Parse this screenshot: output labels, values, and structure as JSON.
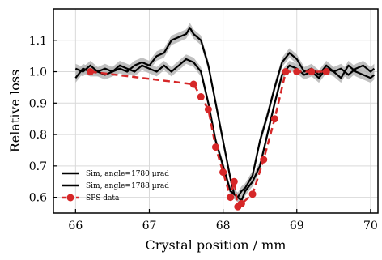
{
  "chart_data": {
    "type": "line",
    "title": "",
    "xlabel": "Crystal position / mm",
    "ylabel": "Relative loss",
    "xlim": [
      65.7,
      70.1
    ],
    "ylim": [
      0.55,
      1.2
    ],
    "xticks": [
      66,
      67,
      68,
      69,
      70
    ],
    "yticks": [
      0.6,
      0.7,
      0.8,
      0.9,
      1.0,
      1.1
    ],
    "xtick_labels": [
      "66",
      "67",
      "68",
      "69",
      "70"
    ],
    "ytick_labels": [
      "0.6",
      "0.7",
      "0.8",
      "0.9",
      "1.0",
      "1.1"
    ],
    "grid": true,
    "legend_position": "lower-left",
    "series": [
      {
        "name": "Sim, angle=1780 µrad",
        "style": "solid",
        "color": "#000000",
        "band_color": "#b5b5b5",
        "band_halfwidth": 0.015,
        "x": [
          66.0,
          66.1,
          66.2,
          66.3,
          66.4,
          66.5,
          66.6,
          66.7,
          66.8,
          66.9,
          67.0,
          67.1,
          67.2,
          67.3,
          67.4,
          67.5,
          67.55,
          67.6,
          67.7,
          67.8,
          67.9,
          68.0,
          68.1,
          68.15,
          68.2,
          68.25,
          68.3,
          68.4,
          68.5,
          68.6,
          68.7,
          68.8,
          68.9,
          69.0,
          69.1,
          69.2,
          69.3,
          69.4,
          69.5,
          69.6,
          69.7,
          69.8,
          69.9,
          70.0,
          70.05
        ],
        "y": [
          1.01,
          1.0,
          1.02,
          1.0,
          1.01,
          1.0,
          1.01,
          1.0,
          1.02,
          1.03,
          1.02,
          1.05,
          1.06,
          1.1,
          1.11,
          1.12,
          1.14,
          1.12,
          1.1,
          1.02,
          0.9,
          0.78,
          0.66,
          0.61,
          0.6,
          0.62,
          0.63,
          0.67,
          0.78,
          0.86,
          0.95,
          1.03,
          1.06,
          1.04,
          1.0,
          1.01,
          0.99,
          1.02,
          1.0,
          1.01,
          0.99,
          1.01,
          1.02,
          1.0,
          1.01
        ]
      },
      {
        "name": "Sim, angle=1788 µrad",
        "style": "solid",
        "color": "#000000",
        "band_color": "#b5b5b5",
        "band_halfwidth": 0.015,
        "x": [
          66.0,
          66.1,
          66.2,
          66.3,
          66.4,
          66.5,
          66.6,
          66.7,
          66.8,
          66.9,
          67.0,
          67.1,
          67.2,
          67.3,
          67.4,
          67.5,
          67.6,
          67.7,
          67.8,
          67.9,
          68.0,
          68.1,
          68.2,
          68.25,
          68.3,
          68.4,
          68.5,
          68.6,
          68.7,
          68.8,
          68.9,
          69.0,
          69.1,
          69.2,
          69.3,
          69.4,
          69.5,
          69.6,
          69.7,
          69.8,
          69.9,
          70.0,
          70.05
        ],
        "y": [
          0.98,
          1.01,
          1.0,
          1.0,
          0.99,
          1.0,
          1.02,
          1.01,
          1.0,
          1.02,
          1.01,
          1.0,
          1.02,
          1.0,
          1.02,
          1.04,
          1.03,
          1.0,
          0.9,
          0.78,
          0.7,
          0.62,
          0.6,
          0.59,
          0.62,
          0.65,
          0.7,
          0.8,
          0.9,
          0.99,
          1.02,
          1.01,
          0.99,
          1.0,
          0.98,
          1.01,
          1.0,
          0.98,
          1.02,
          1.0,
          0.99,
          0.98,
          0.99
        ]
      },
      {
        "name": "SPS data",
        "style": "dashed-markers",
        "color": "#d62728",
        "x": [
          66.2,
          67.6,
          67.7,
          67.8,
          67.9,
          68.0,
          68.1,
          68.15,
          68.2,
          68.25,
          68.4,
          68.55,
          68.7,
          68.85,
          69.0,
          69.2,
          69.4
        ],
        "y": [
          1.0,
          0.96,
          0.92,
          0.88,
          0.76,
          0.68,
          0.6,
          0.65,
          0.57,
          0.58,
          0.61,
          0.72,
          0.85,
          1.0,
          1.0,
          1.0,
          1.0
        ]
      }
    ]
  }
}
